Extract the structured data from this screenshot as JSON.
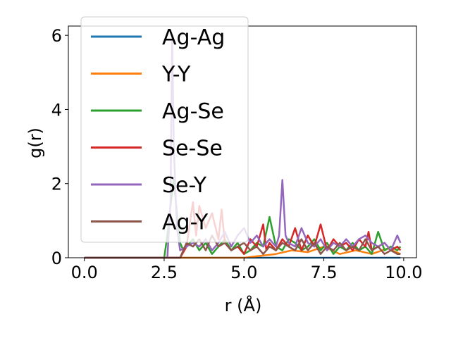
{
  "chart_data": {
    "type": "line",
    "title": "",
    "xlabel": "r (Å)",
    "ylabel": "g(r)",
    "xlim": [
      -0.5,
      10.4
    ],
    "ylim": [
      0,
      6.25
    ],
    "xticks": [
      "0.0",
      "2.5",
      "5.0",
      "7.5",
      "10.0"
    ],
    "yticks": [
      "0",
      "2",
      "4",
      "6"
    ],
    "grid": false,
    "legend_position": "top-left",
    "series": [
      {
        "name": "Ag-Ag",
        "color": "#1f77b4",
        "x": [
          0.0,
          1.0,
          2.0,
          3.0,
          4.0,
          5.0,
          6.0,
          7.0,
          8.0,
          9.0,
          9.9
        ],
        "y": [
          0,
          0,
          0,
          0,
          0,
          0,
          0,
          0,
          0,
          0,
          0
        ]
      },
      {
        "name": "Y-Y",
        "color": "#ff7f0e",
        "x": [
          0.0,
          1.0,
          2.0,
          3.0,
          4.0,
          5.0,
          5.5,
          6.0,
          6.5,
          7.0,
          7.5,
          8.0,
          8.5,
          9.0,
          9.5,
          9.9
        ],
        "y": [
          0,
          0,
          0,
          0,
          0,
          0,
          0.05,
          0.1,
          0.2,
          0.15,
          0.3,
          0.1,
          0.2,
          0.1,
          0.25,
          0.1
        ]
      },
      {
        "name": "Ag-Se",
        "color": "#2ca02c",
        "x": [
          0.0,
          2.5,
          2.6,
          2.7,
          2.8,
          2.9,
          3.0,
          3.1,
          3.2,
          3.4,
          3.6,
          3.8,
          4.0,
          4.2,
          4.4,
          4.6,
          4.8,
          5.0,
          5.2,
          5.4,
          5.6,
          5.8,
          6.0,
          6.2,
          6.4,
          6.6,
          6.8,
          7.0,
          7.2,
          7.4,
          7.6,
          7.8,
          8.0,
          8.2,
          8.4,
          8.6,
          8.8,
          9.0,
          9.2,
          9.4,
          9.6,
          9.8,
          9.9
        ],
        "y": [
          0,
          0,
          0.6,
          1.4,
          2.1,
          1.2,
          0.4,
          0.2,
          0.3,
          0.5,
          0.2,
          0.4,
          0.1,
          0.3,
          0.5,
          0.2,
          0.4,
          0.1,
          0.2,
          0.4,
          0.3,
          1.1,
          0.3,
          0.2,
          0.5,
          0.4,
          0.2,
          0.3,
          0.5,
          0.2,
          0.4,
          0.1,
          0.3,
          0.2,
          0.4,
          0.2,
          0.3,
          0.1,
          0.7,
          0.2,
          0.3,
          0.2,
          0.3
        ]
      },
      {
        "name": "Se-Se",
        "color": "#d62728",
        "x": [
          0.0,
          3.0,
          3.2,
          3.4,
          3.5,
          3.6,
          3.8,
          4.0,
          4.2,
          4.3,
          4.4,
          4.6,
          4.8,
          5.0,
          5.2,
          5.4,
          5.6,
          5.7,
          5.8,
          6.0,
          6.2,
          6.4,
          6.6,
          6.8,
          7.0,
          7.2,
          7.4,
          7.6,
          7.8,
          8.0,
          8.2,
          8.4,
          8.6,
          8.8,
          8.9,
          9.0,
          9.2,
          9.4,
          9.6,
          9.8,
          9.9
        ],
        "y": [
          0,
          0,
          0.3,
          1.5,
          0.6,
          1.4,
          0.8,
          1.2,
          0.5,
          1.3,
          0.4,
          0.2,
          0.3,
          0.1,
          0.5,
          0.3,
          0.9,
          0.2,
          0.4,
          0.2,
          0.5,
          0.3,
          0.8,
          0.2,
          0.6,
          0.3,
          0.9,
          0.2,
          0.5,
          0.3,
          0.4,
          0.2,
          0.5,
          0.3,
          0.7,
          0.2,
          0.3,
          0.4,
          0.2,
          0.3,
          0.2
        ]
      },
      {
        "name": "Se-Y",
        "color": "#9467bd",
        "x": [
          0.0,
          2.6,
          2.7,
          2.75,
          2.8,
          2.9,
          3.0,
          3.2,
          3.4,
          3.6,
          3.8,
          4.0,
          4.2,
          4.4,
          4.6,
          4.8,
          5.0,
          5.2,
          5.4,
          5.6,
          5.8,
          6.0,
          6.1,
          6.2,
          6.3,
          6.4,
          6.6,
          6.8,
          7.0,
          7.2,
          7.4,
          7.6,
          7.8,
          8.0,
          8.2,
          8.4,
          8.6,
          8.8,
          9.0,
          9.2,
          9.4,
          9.6,
          9.8,
          9.9
        ],
        "y": [
          0,
          0,
          1.5,
          6.0,
          3.0,
          0.8,
          0.2,
          0.3,
          0.4,
          0.3,
          0.5,
          0.2,
          0.4,
          0.7,
          0.3,
          0.6,
          0.8,
          0.4,
          0.6,
          0.3,
          0.5,
          0.3,
          0.6,
          2.1,
          0.6,
          0.4,
          0.3,
          0.8,
          0.4,
          0.3,
          0.5,
          0.2,
          0.4,
          0.3,
          0.5,
          0.3,
          0.5,
          0.6,
          0.4,
          0.3,
          0.4,
          0.2,
          0.6,
          0.4
        ]
      },
      {
        "name": "Ag-Y",
        "color": "#8c564b",
        "x": [
          0.0,
          3.0,
          3.2,
          3.4,
          3.6,
          3.8,
          4.0,
          4.2,
          4.4,
          4.6,
          4.8,
          5.0,
          5.2,
          5.4,
          5.6,
          5.8,
          6.0,
          6.2,
          6.4,
          6.6,
          6.8,
          7.0,
          7.2,
          7.4,
          7.6,
          7.8,
          8.0,
          8.2,
          8.4,
          8.6,
          8.8,
          9.0,
          9.2,
          9.4,
          9.6,
          9.8,
          9.9
        ],
        "y": [
          0,
          0,
          0.4,
          0.3,
          0.5,
          0.2,
          0.6,
          0.3,
          0.4,
          0.2,
          0.3,
          0.4,
          0.2,
          0.3,
          0.1,
          0.3,
          0.2,
          0.4,
          0.3,
          0.2,
          0.5,
          0.2,
          0.4,
          0.1,
          0.3,
          0.2,
          0.4,
          0.2,
          0.3,
          0.2,
          0.5,
          0.2,
          0.3,
          0.1,
          0.2,
          0.1,
          0.1
        ]
      }
    ]
  }
}
